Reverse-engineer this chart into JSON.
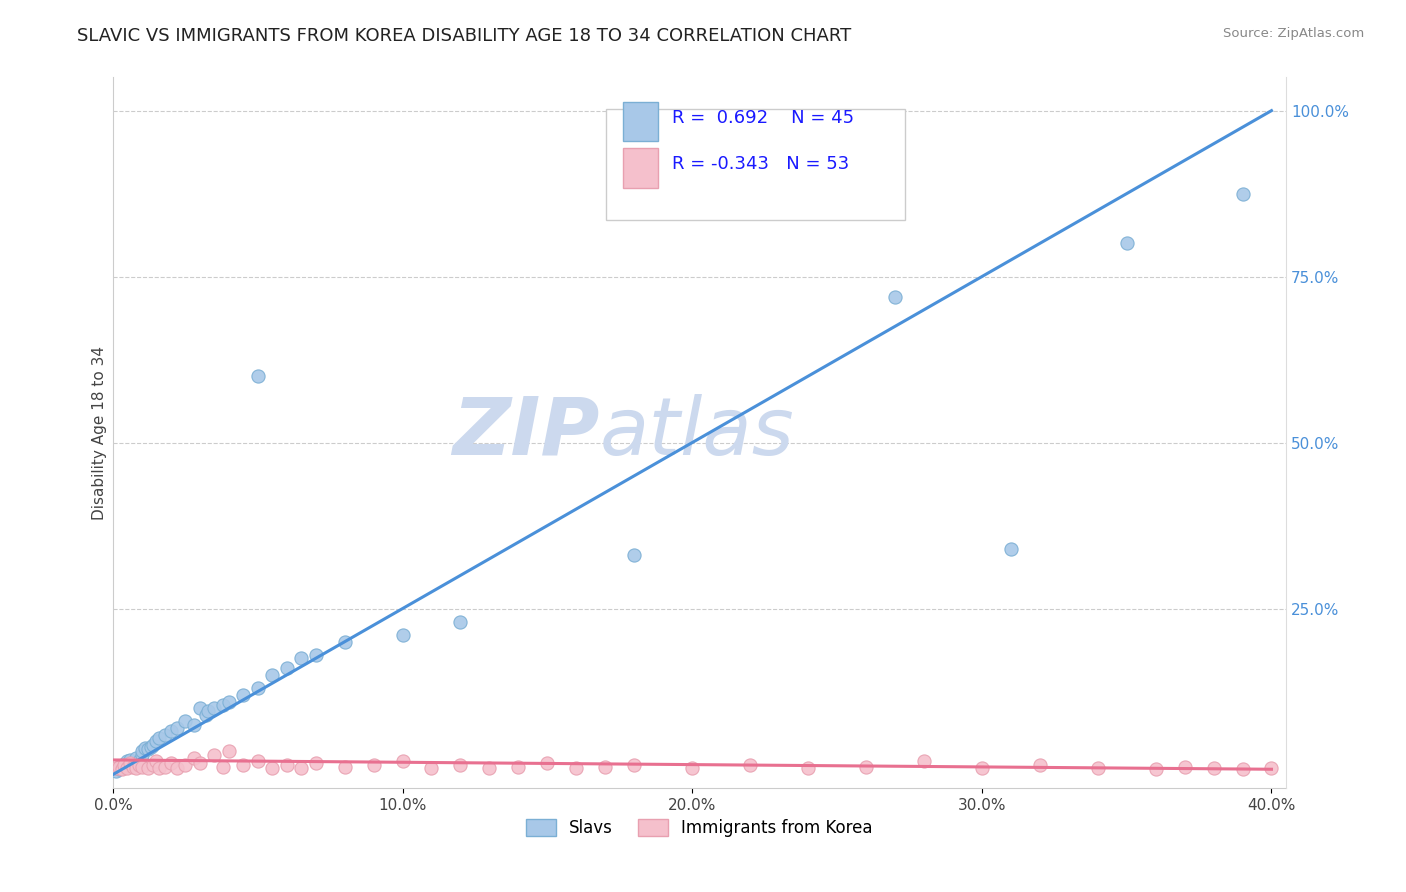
{
  "title": "SLAVIC VS IMMIGRANTS FROM KOREA DISABILITY AGE 18 TO 34 CORRELATION CHART",
  "source": "Source: ZipAtlas.com",
  "ylabel": "Disability Age 18 to 34",
  "background_color": "#ffffff",
  "watermark_zip": "ZIP",
  "watermark_atlas": "atlas",
  "series": [
    {
      "name": "Slavs",
      "dot_face": "#a8c8e8",
      "dot_edge": "#7bafd4",
      "R": 0.692,
      "N": 45,
      "line_color": "#4a90d9",
      "points_x": [
        0.001,
        0.002,
        0.003,
        0.003,
        0.004,
        0.005,
        0.005,
        0.006,
        0.007,
        0.008,
        0.009,
        0.01,
        0.01,
        0.011,
        0.012,
        0.013,
        0.014,
        0.015,
        0.016,
        0.018,
        0.02,
        0.022,
        0.025,
        0.028,
        0.03,
        0.032,
        0.033,
        0.035,
        0.038,
        0.04,
        0.045,
        0.05,
        0.055,
        0.06,
        0.065,
        0.07,
        0.08,
        0.1,
        0.12,
        0.05,
        0.18,
        0.27,
        0.31,
        0.35,
        0.39
      ],
      "points_y": [
        0.005,
        0.008,
        0.01,
        0.015,
        0.012,
        0.018,
        0.02,
        0.022,
        0.015,
        0.025,
        0.02,
        0.03,
        0.035,
        0.04,
        0.038,
        0.042,
        0.045,
        0.05,
        0.055,
        0.06,
        0.065,
        0.07,
        0.08,
        0.075,
        0.1,
        0.09,
        0.095,
        0.1,
        0.105,
        0.11,
        0.12,
        0.13,
        0.15,
        0.16,
        0.175,
        0.18,
        0.2,
        0.21,
        0.23,
        0.6,
        0.33,
        0.72,
        0.34,
        0.8,
        0.875
      ],
      "line_x": [
        0.0,
        0.4
      ],
      "line_y": [
        0.0,
        1.0
      ]
    },
    {
      "name": "Immigrants from Korea",
      "dot_face": "#f5c0cc",
      "dot_edge": "#e8a0b0",
      "R": -0.343,
      "N": 53,
      "line_color": "#e87090",
      "points_x": [
        0.001,
        0.002,
        0.003,
        0.004,
        0.005,
        0.006,
        0.007,
        0.008,
        0.009,
        0.01,
        0.012,
        0.014,
        0.015,
        0.016,
        0.018,
        0.02,
        0.022,
        0.025,
        0.028,
        0.03,
        0.035,
        0.038,
        0.04,
        0.045,
        0.05,
        0.055,
        0.06,
        0.065,
        0.07,
        0.08,
        0.09,
        0.1,
        0.11,
        0.12,
        0.13,
        0.14,
        0.15,
        0.16,
        0.17,
        0.18,
        0.2,
        0.22,
        0.24,
        0.26,
        0.28,
        0.3,
        0.32,
        0.34,
        0.36,
        0.37,
        0.38,
        0.39,
        0.4
      ],
      "points_y": [
        0.01,
        0.012,
        0.008,
        0.015,
        0.01,
        0.018,
        0.012,
        0.01,
        0.015,
        0.012,
        0.01,
        0.015,
        0.02,
        0.01,
        0.012,
        0.018,
        0.01,
        0.015,
        0.025,
        0.018,
        0.03,
        0.012,
        0.035,
        0.015,
        0.02,
        0.01,
        0.015,
        0.01,
        0.018,
        0.012,
        0.015,
        0.02,
        0.01,
        0.015,
        0.01,
        0.012,
        0.018,
        0.01,
        0.012,
        0.015,
        0.01,
        0.015,
        0.01,
        0.012,
        0.02,
        0.01,
        0.015,
        0.01,
        0.008,
        0.012,
        0.01,
        0.008,
        0.01
      ],
      "line_x": [
        0.0,
        0.4
      ],
      "line_y": [
        0.022,
        0.008
      ]
    }
  ],
  "xlim": [
    0.0,
    0.405
  ],
  "ylim": [
    -0.02,
    1.05
  ],
  "xticks": [
    0.0,
    0.1,
    0.2,
    0.3,
    0.4
  ],
  "xticklabels": [
    "0.0%",
    "10.0%",
    "20.0%",
    "30.0%",
    "40.0%"
  ],
  "yticks_right": [
    0.25,
    0.5,
    0.75,
    1.0
  ],
  "yticklabels_right": [
    "25.0%",
    "50.0%",
    "75.0%",
    "100.0%"
  ],
  "title_fontsize": 13,
  "axis_fontsize": 11,
  "tick_fontsize": 11,
  "watermark_fontsize_zip": 58,
  "watermark_fontsize_atlas": 58,
  "watermark_color": "#ccd9ee"
}
